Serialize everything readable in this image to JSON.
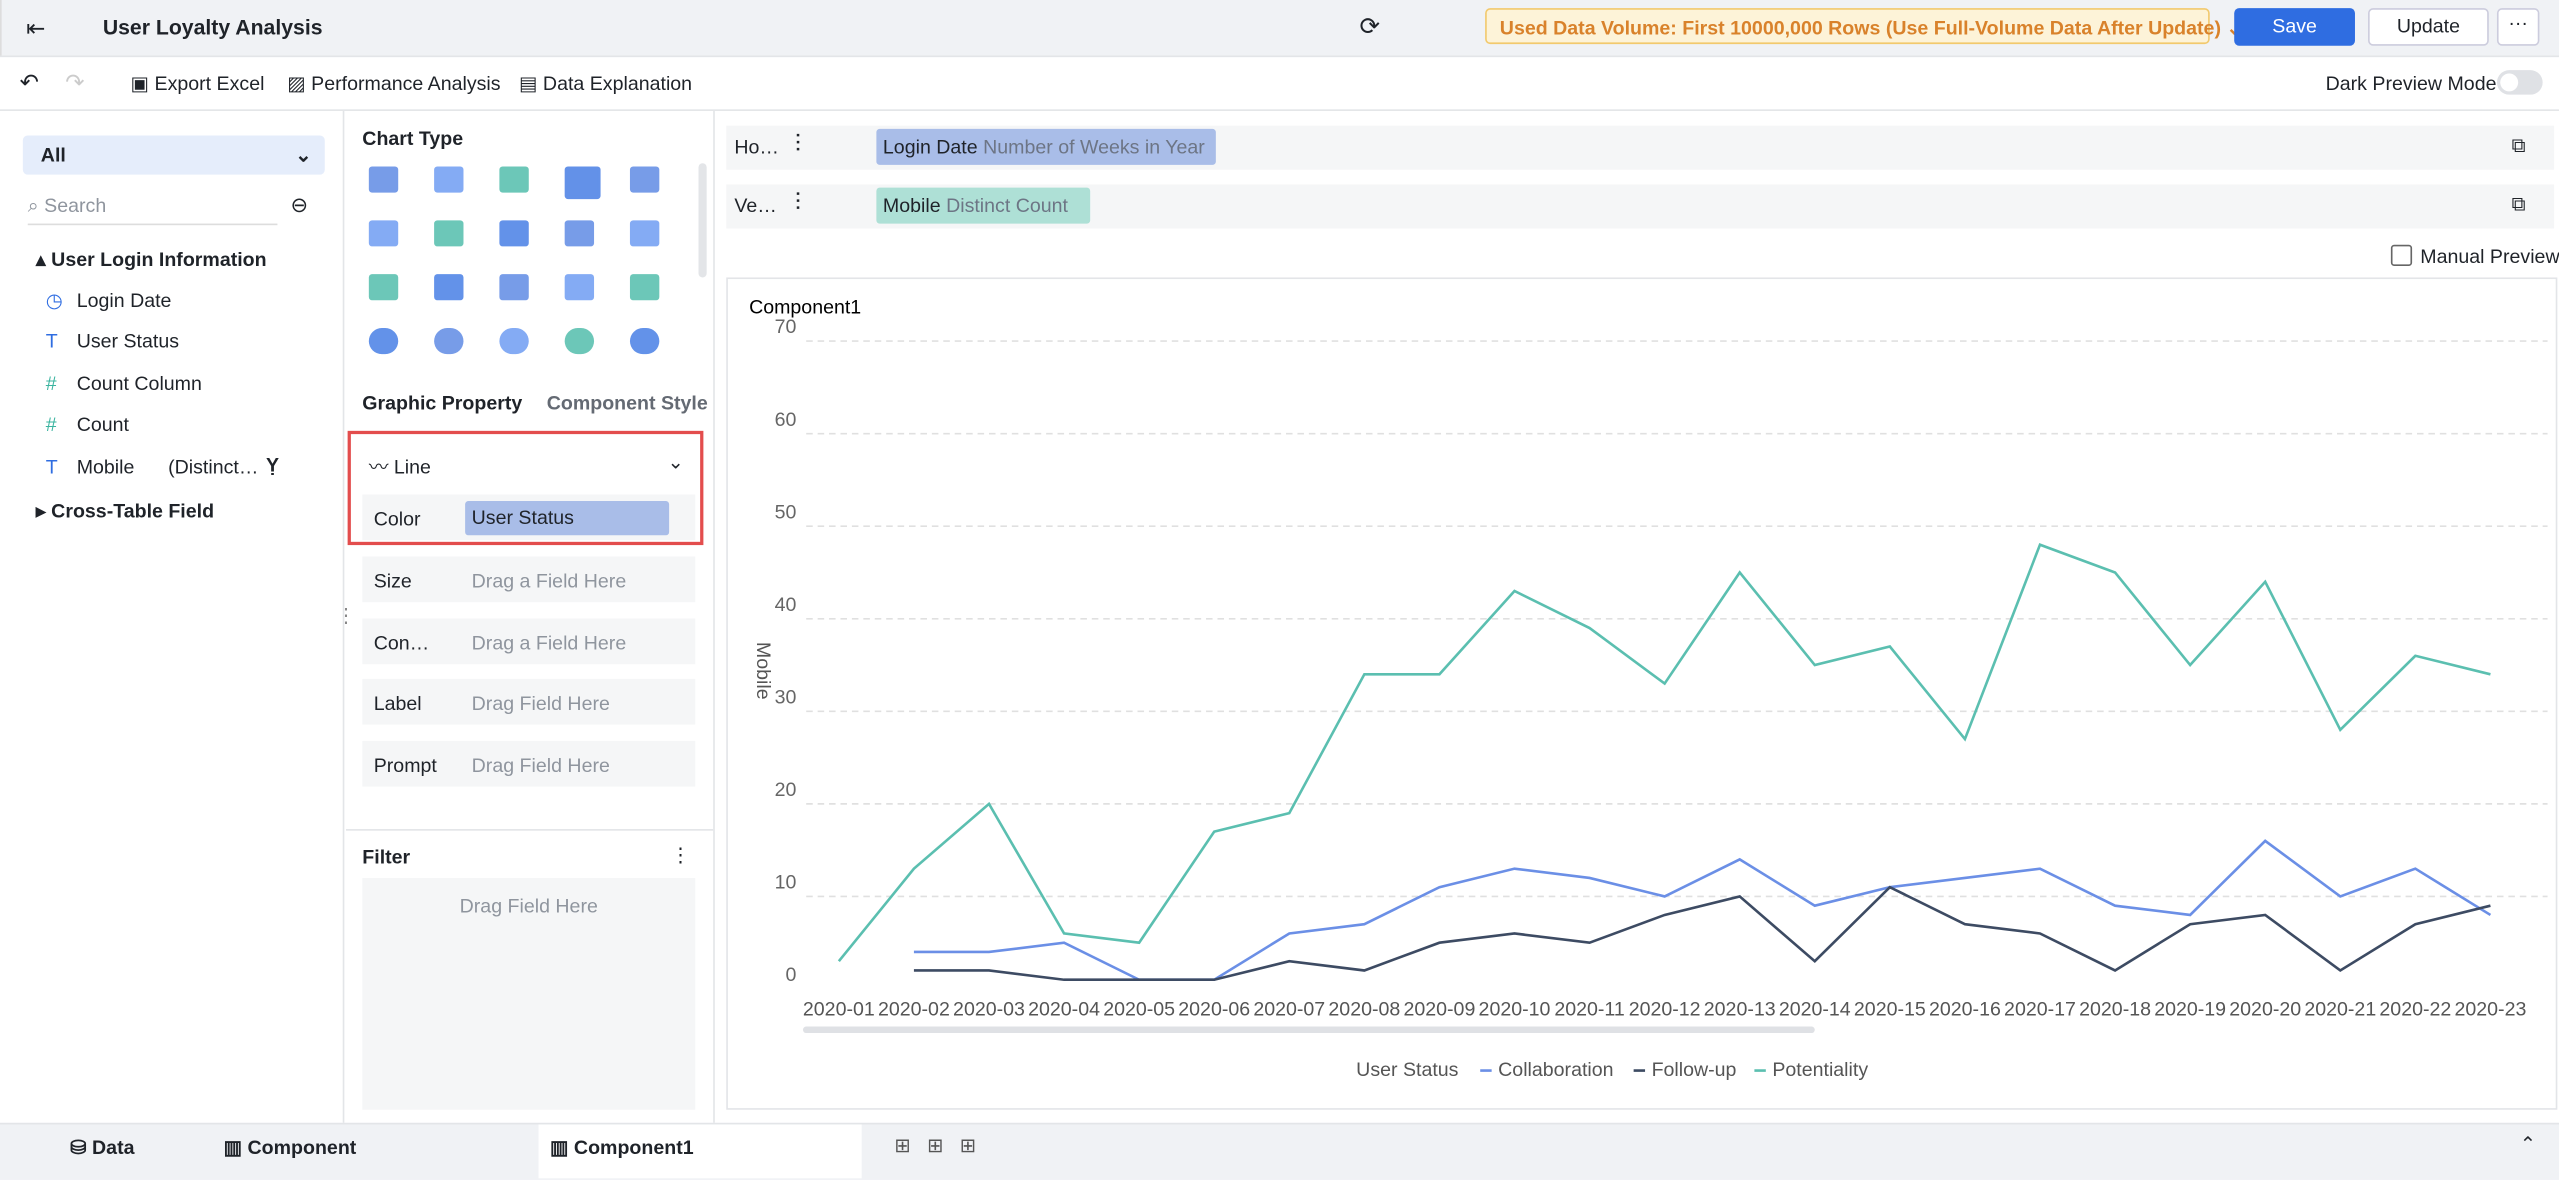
{
  "header": {
    "title": "User Loyalty Analysis",
    "notice": "Used Data Volume: First 10000,000 Rows (Use Full-Volume Data After Update)",
    "save": "Save",
    "update": "Update"
  },
  "toolbar": {
    "export": "Export Excel",
    "performance": "Performance Analysis",
    "explanation": "Data Explanation",
    "dark_mode": "Dark Preview Mode"
  },
  "fields_panel": {
    "filter": "All",
    "search": "Search",
    "groups": [
      {
        "name": "User Login Information",
        "fields": [
          "Login Date",
          "User Status",
          "Count Column",
          "Count",
          "Mobile"
        ],
        "mobile_note": "(Distinct…"
      },
      {
        "name": "Cross-Table Field"
      }
    ]
  },
  "config_panel": {
    "chart_type": "Chart Type",
    "tabs": [
      "Graphic Property",
      "Component Style"
    ],
    "mark_type": "Line",
    "color_label": "Color",
    "color_field": "User Status",
    "properties": [
      {
        "label": "Size",
        "placeholder": "Drag a Field Here"
      },
      {
        "label": "Con…",
        "placeholder": "Drag a Field Here"
      },
      {
        "label": "Label",
        "placeholder": "Drag Field Here"
      },
      {
        "label": "Prompt",
        "placeholder": "Drag Field Here"
      }
    ],
    "filter": "Filter",
    "filter_placeholder": "Drag Field Here"
  },
  "axes_config": {
    "horizontal_label": "Ho…",
    "horizontal_field": "Login Date",
    "horizontal_detail": "Number of Weeks in Year",
    "vertical_label": "Ve…",
    "vertical_field": "Mobile",
    "vertical_detail": "Distinct Count",
    "manual_preview": "Manual Preview"
  },
  "bottom_tabs": [
    "Data",
    "Component",
    "Component1"
  ],
  "chart_data": {
    "type": "line",
    "title": "Component1",
    "y_label": "Mobile",
    "legend_title": "User Status",
    "categories": [
      "2020-01",
      "2020-02",
      "2020-03",
      "2020-04",
      "2020-05",
      "2020-06",
      "2020-07",
      "2020-08",
      "2020-09",
      "2020-10",
      "2020-11",
      "2020-12",
      "2020-13",
      "2020-14",
      "2020-15",
      "2020-16",
      "2020-17",
      "2020-18",
      "2020-19",
      "2020-20",
      "2020-21",
      "2020-22",
      "2020-23"
    ],
    "series": [
      {
        "name": "Collaboration",
        "color": "#6b8fe6",
        "values": [
          null,
          4,
          4,
          5,
          1,
          1,
          6,
          7,
          11,
          13,
          12,
          10,
          14,
          9,
          11,
          12,
          13,
          9,
          8,
          16,
          10,
          13,
          8
        ]
      },
      {
        "name": "Follow-up",
        "color": "#3d4b63",
        "values": [
          null,
          2,
          2,
          1,
          1,
          1,
          3,
          2,
          5,
          6,
          5,
          8,
          10,
          3,
          11,
          7,
          6,
          2,
          7,
          8,
          2,
          7,
          9
        ]
      },
      {
        "name": "Potentiality",
        "color": "#5bbfb0",
        "values": [
          3,
          13,
          20,
          6,
          5,
          17,
          19,
          34,
          34,
          43,
          39,
          33,
          45,
          35,
          37,
          27,
          48,
          45,
          35,
          44,
          28,
          36,
          34
        ]
      }
    ],
    "ylim": [
      0,
      70
    ],
    "yticks": [
      0,
      10,
      20,
      30,
      40,
      50,
      60,
      70
    ],
    "grid": true
  }
}
